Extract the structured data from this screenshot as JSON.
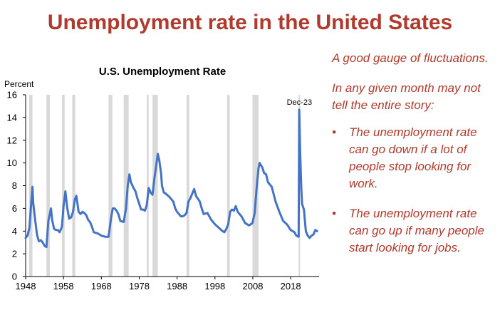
{
  "slide": {
    "title": "Unemployment rate in the United States",
    "accent_color": "#B03A2E"
  },
  "notes": {
    "intro": "A good gauge of fluctuations.",
    "lead": "In any given month may not tell the entire story:",
    "bullets": [
      "The unemployment rate can go down if a lot of people stop looking for work.",
      "The unemployment rate can go up if many people start looking for jobs."
    ],
    "bullet_marker": "•"
  },
  "chart_data": {
    "type": "line",
    "title": "U.S. Unemployment  Rate",
    "ylabel": "Percent",
    "xlabel": "",
    "ylim": [
      0,
      16
    ],
    "xlim": [
      1948,
      2025.5
    ],
    "yticks": [
      0,
      2,
      4,
      6,
      8,
      10,
      12,
      14,
      16
    ],
    "xticks": [
      1948,
      1958,
      1968,
      1978,
      1988,
      1998,
      2008,
      2018
    ],
    "grid": false,
    "line_color": "#4472C4",
    "recession_color": "#D9D9D9",
    "annotation": {
      "text": "Dec-23",
      "x": 2020.3,
      "y": 14.8
    },
    "recessions": [
      [
        1948.9,
        1949.8
      ],
      [
        1953.5,
        1954.4
      ],
      [
        1957.6,
        1958.3
      ],
      [
        1960.3,
        1961.1
      ],
      [
        1969.9,
        1970.9
      ],
      [
        1973.9,
        1975.2
      ],
      [
        1980.0,
        1980.5
      ],
      [
        1981.5,
        1982.9
      ],
      [
        1990.5,
        1991.2
      ],
      [
        2001.2,
        2001.9
      ],
      [
        2007.9,
        2009.5
      ],
      [
        2020.1,
        2020.4
      ]
    ],
    "series": [
      {
        "values": [
          [
            1948.0,
            3.4
          ],
          [
            1948.5,
            3.6
          ],
          [
            1949.0,
            4.3
          ],
          [
            1949.5,
            6.6
          ],
          [
            1949.8,
            7.9
          ],
          [
            1950.0,
            6.5
          ],
          [
            1950.5,
            5.0
          ],
          [
            1951.0,
            3.7
          ],
          [
            1951.5,
            3.1
          ],
          [
            1952.0,
            3.2
          ],
          [
            1952.5,
            3.0
          ],
          [
            1953.0,
            2.7
          ],
          [
            1953.5,
            2.6
          ],
          [
            1954.0,
            4.9
          ],
          [
            1954.7,
            6.0
          ],
          [
            1955.0,
            5.0
          ],
          [
            1955.5,
            4.2
          ],
          [
            1956.0,
            4.1
          ],
          [
            1956.5,
            4.1
          ],
          [
            1957.0,
            3.9
          ],
          [
            1957.6,
            4.4
          ],
          [
            1958.0,
            6.2
          ],
          [
            1958.5,
            7.5
          ],
          [
            1959.0,
            6.0
          ],
          [
            1959.5,
            5.1
          ],
          [
            1960.0,
            5.2
          ],
          [
            1960.5,
            5.7
          ],
          [
            1961.0,
            6.8
          ],
          [
            1961.4,
            7.1
          ],
          [
            1962.0,
            5.7
          ],
          [
            1962.5,
            5.5
          ],
          [
            1963.0,
            5.7
          ],
          [
            1963.5,
            5.6
          ],
          [
            1964.0,
            5.4
          ],
          [
            1964.5,
            5.0
          ],
          [
            1965.0,
            4.8
          ],
          [
            1965.5,
            4.4
          ],
          [
            1966.0,
            3.9
          ],
          [
            1967.0,
            3.8
          ],
          [
            1968.0,
            3.6
          ],
          [
            1969.0,
            3.5
          ],
          [
            1969.9,
            3.5
          ],
          [
            1970.5,
            5.0
          ],
          [
            1971.0,
            6.0
          ],
          [
            1971.5,
            6.0
          ],
          [
            1972.0,
            5.8
          ],
          [
            1972.5,
            5.5
          ],
          [
            1973.0,
            4.9
          ],
          [
            1973.9,
            4.8
          ],
          [
            1974.5,
            6.0
          ],
          [
            1975.0,
            8.1
          ],
          [
            1975.4,
            9.0
          ],
          [
            1975.8,
            8.3
          ],
          [
            1976.5,
            7.8
          ],
          [
            1977.0,
            7.5
          ],
          [
            1977.5,
            6.9
          ],
          [
            1978.0,
            6.4
          ],
          [
            1978.5,
            5.9
          ],
          [
            1979.0,
            5.9
          ],
          [
            1979.5,
            5.8
          ],
          [
            1980.0,
            6.3
          ],
          [
            1980.5,
            7.8
          ],
          [
            1981.0,
            7.4
          ],
          [
            1981.5,
            7.2
          ],
          [
            1982.0,
            8.6
          ],
          [
            1982.5,
            9.8
          ],
          [
            1982.9,
            10.8
          ],
          [
            1983.3,
            10.2
          ],
          [
            1983.8,
            9.0
          ],
          [
            1984.0,
            8.0
          ],
          [
            1984.5,
            7.4
          ],
          [
            1985.0,
            7.3
          ],
          [
            1986.0,
            7.0
          ],
          [
            1987.0,
            6.6
          ],
          [
            1987.5,
            6.0
          ],
          [
            1988.0,
            5.7
          ],
          [
            1989.0,
            5.3
          ],
          [
            1989.5,
            5.3
          ],
          [
            1990.0,
            5.4
          ],
          [
            1990.5,
            5.6
          ],
          [
            1991.0,
            6.6
          ],
          [
            1991.5,
            6.9
          ],
          [
            1992.0,
            7.3
          ],
          [
            1992.5,
            7.7
          ],
          [
            1993.0,
            7.1
          ],
          [
            1994.0,
            6.6
          ],
          [
            1994.5,
            6.0
          ],
          [
            1995.0,
            5.5
          ],
          [
            1996.0,
            5.6
          ],
          [
            1997.0,
            5.0
          ],
          [
            1998.0,
            4.6
          ],
          [
            1999.0,
            4.3
          ],
          [
            2000.0,
            4.0
          ],
          [
            2000.5,
            3.9
          ],
          [
            2001.0,
            4.2
          ],
          [
            2001.5,
            4.6
          ],
          [
            2002.0,
            5.7
          ],
          [
            2002.5,
            5.9
          ],
          [
            2003.0,
            5.8
          ],
          [
            2003.5,
            6.2
          ],
          [
            2004.0,
            5.7
          ],
          [
            2005.0,
            5.3
          ],
          [
            2006.0,
            4.7
          ],
          [
            2007.0,
            4.5
          ],
          [
            2007.9,
            4.7
          ],
          [
            2008.5,
            5.6
          ],
          [
            2009.0,
            7.8
          ],
          [
            2009.5,
            9.5
          ],
          [
            2009.8,
            10.0
          ],
          [
            2010.5,
            9.6
          ],
          [
            2011.0,
            9.1
          ],
          [
            2011.5,
            9.0
          ],
          [
            2012.0,
            8.3
          ],
          [
            2012.5,
            8.1
          ],
          [
            2013.0,
            7.9
          ],
          [
            2014.0,
            6.6
          ],
          [
            2015.0,
            5.7
          ],
          [
            2016.0,
            4.9
          ],
          [
            2017.0,
            4.6
          ],
          [
            2018.0,
            4.1
          ],
          [
            2019.0,
            3.9
          ],
          [
            2019.5,
            3.6
          ],
          [
            2020.1,
            3.5
          ],
          [
            2020.25,
            14.7
          ],
          [
            2020.5,
            11.0
          ],
          [
            2020.8,
            7.8
          ],
          [
            2021.0,
            6.4
          ],
          [
            2021.5,
            5.9
          ],
          [
            2022.0,
            4.0
          ],
          [
            2022.5,
            3.6
          ],
          [
            2023.0,
            3.4
          ],
          [
            2023.5,
            3.6
          ],
          [
            2024.0,
            3.7
          ],
          [
            2024.5,
            4.1
          ],
          [
            2025.0,
            4.0
          ]
        ]
      }
    ]
  }
}
